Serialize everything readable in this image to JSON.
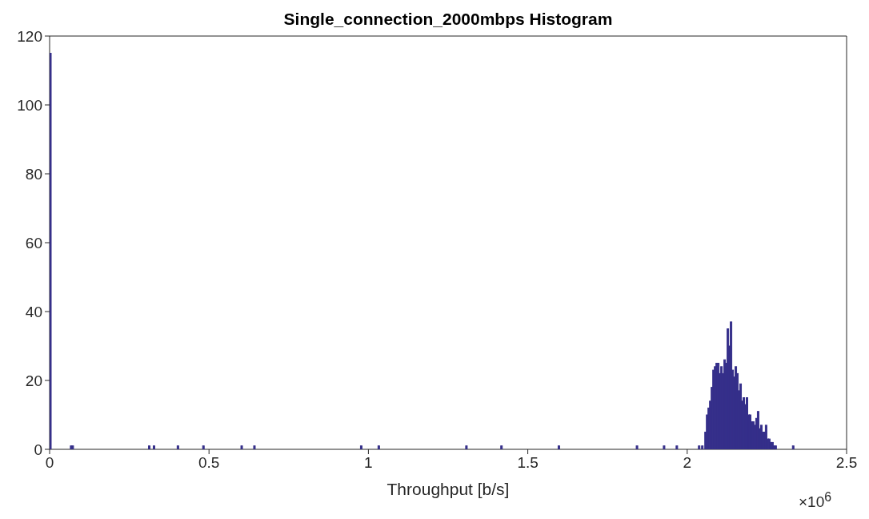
{
  "chart_data": {
    "type": "histogram",
    "title": "Single_connection_2000mbps Histogram",
    "xlabel": "Throughput [b/s]",
    "annotations": [
      "×10$^{6}$"
    ],
    "color": "#352f8a",
    "grid": false,
    "bins": [
      0,
      0.005,
      0.065,
      0.07,
      0.075,
      0.31,
      0.315,
      0.325,
      0.33,
      0.4,
      0.405,
      0.48,
      0.485,
      0.6,
      0.605,
      0.64,
      0.645,
      0.975,
      0.98,
      1.03,
      1.035,
      1.305,
      1.31,
      1.415,
      1.42,
      1.595,
      1.6,
      1.84,
      1.845,
      1.925,
      1.93,
      1.965,
      1.97,
      2.035,
      2.04,
      2.045,
      2.05,
      2.055,
      2.06,
      2.065,
      2.07,
      2.075,
      2.08,
      2.085,
      2.09,
      2.095,
      2.1,
      2.105,
      2.11,
      2.115,
      2.12,
      2.125,
      2.13,
      2.135,
      2.14,
      2.145,
      2.15,
      2.155,
      2.16,
      2.165,
      2.17,
      2.175,
      2.18,
      2.185,
      2.19,
      2.195,
      2.2,
      2.205,
      2.21,
      2.215,
      2.22,
      2.225,
      2.23,
      2.235,
      2.24,
      2.245,
      2.25,
      2.255,
      2.26,
      2.265,
      2.27,
      2.275,
      2.28,
      2.33,
      2.335
    ],
    "values": [
      115,
      0,
      1,
      1,
      0,
      1,
      0,
      1,
      0,
      1,
      0,
      1,
      0,
      1,
      0,
      1,
      0,
      1,
      0,
      1,
      0,
      1,
      0,
      1,
      0,
      1,
      0,
      1,
      0,
      1,
      0,
      1,
      0,
      1,
      0,
      1,
      0,
      5,
      10,
      12,
      14,
      18,
      23,
      24,
      25,
      25,
      22,
      24,
      22,
      26,
      25,
      35,
      30,
      37,
      23,
      21,
      24,
      22,
      17,
      19,
      14,
      15,
      13,
      15,
      10,
      10,
      8,
      8,
      7,
      9,
      11,
      6,
      7,
      5,
      5,
      7,
      3,
      3,
      2,
      2,
      1,
      1,
      0,
      1
    ],
    "xlim": [
      0,
      2.5
    ],
    "xticks": [
      0,
      0.5,
      1,
      1.5,
      2,
      2.5
    ],
    "ylim": [
      0,
      120
    ],
    "yticks": [
      0,
      20,
      40,
      60,
      80,
      100,
      120
    ]
  }
}
